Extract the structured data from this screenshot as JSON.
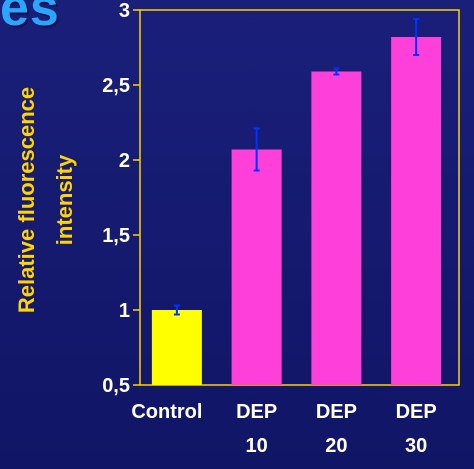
{
  "page": {
    "heading_fragment": "es"
  },
  "chart_data": {
    "type": "bar",
    "categories": [
      {
        "line1": "Control",
        "line2": ""
      },
      {
        "line1": "DEP",
        "line2": "10"
      },
      {
        "line1": "DEP",
        "line2": "20"
      },
      {
        "line1": "DEP",
        "line2": "30"
      }
    ],
    "values": [
      1.0,
      2.07,
      2.59,
      2.82
    ],
    "errors": [
      0.03,
      0.14,
      0.02,
      0.12
    ],
    "bar_colors": [
      "#ffff00",
      "#ff3fd9",
      "#ff3fd9",
      "#ff3fd9"
    ],
    "error_bar_color": "#0033ff",
    "ylabel_line1": "Relative fluorescence",
    "ylabel_line2": "intensity",
    "ylim": [
      0.5,
      3
    ],
    "yticks": [
      {
        "value": 0.5,
        "label": "0,5"
      },
      {
        "value": 1.0,
        "label": "1"
      },
      {
        "value": 1.5,
        "label": "1,5"
      },
      {
        "value": 2.0,
        "label": "2"
      },
      {
        "value": 2.5,
        "label": "2,5"
      },
      {
        "value": 3.0,
        "label": "3"
      }
    ],
    "axis_color": "#ffd400",
    "grid": false
  }
}
